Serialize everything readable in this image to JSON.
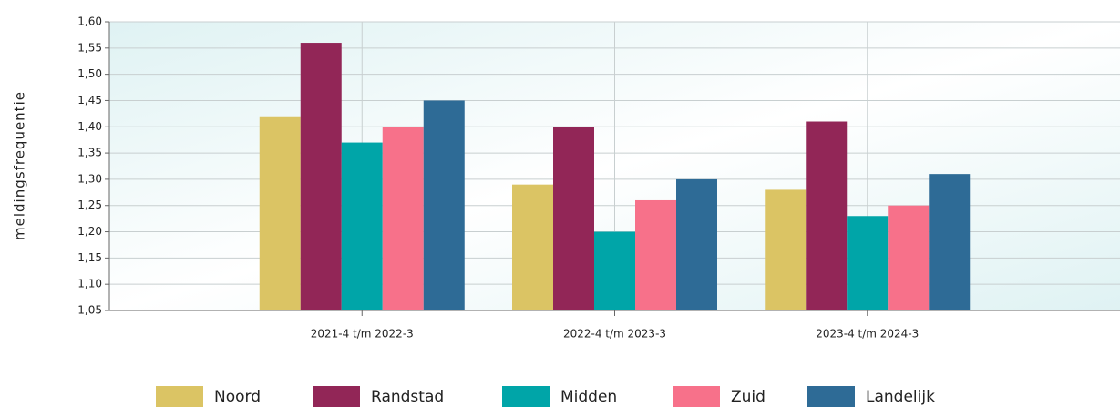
{
  "chart_data": {
    "type": "bar",
    "y_label": "meldingsfrequentie",
    "categories": [
      "2021-4 t/m 2022-3",
      "2022-4 t/m 2023-3",
      "2023-4 t/m 2024-3"
    ],
    "series": [
      {
        "name": "Noord",
        "color": "#dbc464",
        "values": [
          1.42,
          1.29,
          1.28
        ]
      },
      {
        "name": "Randstad",
        "color": "#922657",
        "values": [
          1.56,
          1.4,
          1.41
        ]
      },
      {
        "name": "Midden",
        "color": "#00a5a8",
        "values": [
          1.37,
          1.2,
          1.23
        ]
      },
      {
        "name": "Zuid",
        "color": "#f7718a",
        "values": [
          1.4,
          1.26,
          1.25
        ]
      },
      {
        "name": "Landelijk",
        "color": "#2e6b96",
        "values": [
          1.45,
          1.3,
          1.31
        ]
      }
    ],
    "ylim": [
      1.05,
      1.6
    ],
    "yticks": [
      {
        "value": 1.05,
        "label": "1,05"
      },
      {
        "value": 1.1,
        "label": "1,10"
      },
      {
        "value": 1.15,
        "label": "1,15"
      },
      {
        "value": 1.2,
        "label": "1,20"
      },
      {
        "value": 1.25,
        "label": "1,25"
      },
      {
        "value": 1.3,
        "label": "1,30"
      },
      {
        "value": 1.35,
        "label": "1,35"
      },
      {
        "value": 1.4,
        "label": "1,40"
      },
      {
        "value": 1.45,
        "label": "1,45"
      },
      {
        "value": 1.5,
        "label": "1,50"
      },
      {
        "value": 1.55,
        "label": "1,55"
      },
      {
        "value": 1.6,
        "label": "1,60"
      }
    ],
    "grid": true,
    "legend": "bottom"
  }
}
